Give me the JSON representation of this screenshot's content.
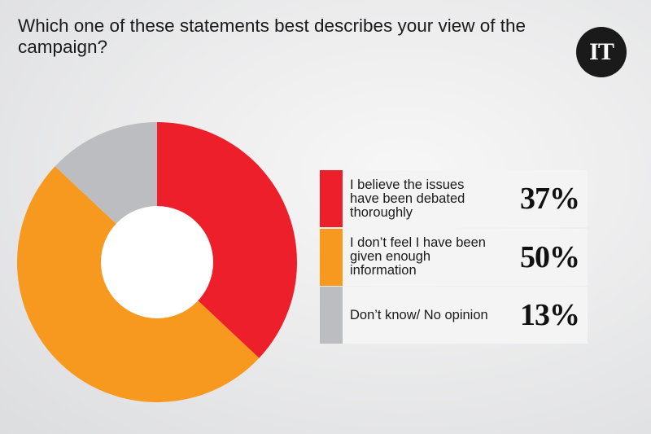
{
  "header": {
    "title": "Which one of these statements best describes your view of the campaign?",
    "logo_text": "IT"
  },
  "legend": [
    {
      "label": "I believe the issues have been debated thoroughly",
      "value_label": "37%",
      "color": "#ed1f2b"
    },
    {
      "label": "I don’t feel I have been given enough information",
      "value_label": "50%",
      "color": "#f7981f"
    },
    {
      "label": "Don’t know/ No opinion",
      "value_label": "13%",
      "color": "#bcbdc0"
    }
  ],
  "chart_data": {
    "type": "pie",
    "subtype": "donut",
    "title": "Which one of these statements best describes your view of the campaign?",
    "categories": [
      "I believe the issues have been debated thoroughly",
      "I don’t feel I have been given enough information",
      "Don’t know/ No opinion"
    ],
    "values": [
      37,
      50,
      13
    ],
    "unit": "%",
    "colors": [
      "#ed1f2b",
      "#f7981f",
      "#bcbdc0"
    ],
    "start_angle": "12 o'clock, clockwise",
    "legend_position": "right"
  }
}
